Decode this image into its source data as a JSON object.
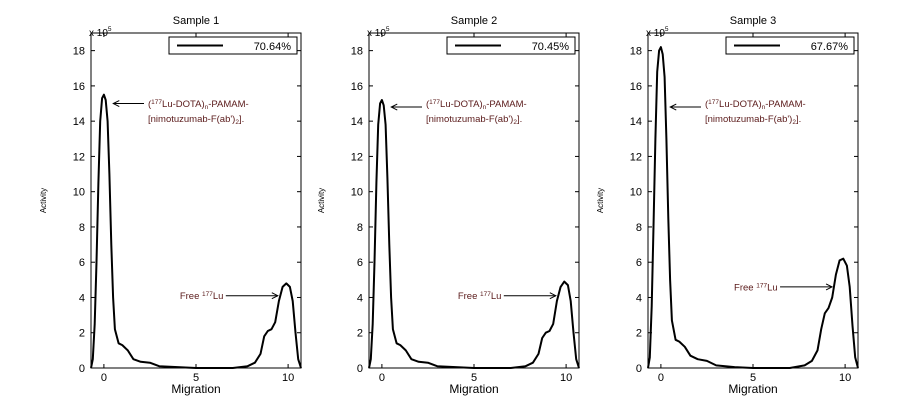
{
  "chart_data": [
    {
      "type": "line",
      "title": "Sample 1",
      "xlabel": "Migration",
      "ylabel": "Activity",
      "y_multiplier": "x 10",
      "y_multiplier_exp": "5",
      "xlim": [
        -0.7,
        10.7
      ],
      "ylim": [
        0,
        19
      ],
      "xticks": [
        0,
        5,
        10
      ],
      "yticks": [
        0,
        2,
        4,
        6,
        8,
        10,
        12,
        14,
        16,
        18
      ],
      "legend": {
        "text": "70.64%",
        "position": "top-right"
      },
      "annotations": [
        {
          "lines": [
            "(177Lu-DOTA)n-PAMAM-",
            "[nimotuzumab-F(ab')2]."
          ],
          "arrow_to": [
            0.4,
            15.0
          ]
        },
        {
          "lines": [
            "Free 177Lu"
          ],
          "arrow_to": [
            9.55,
            4.1
          ]
        }
      ],
      "series": [
        {
          "x": [
            -0.7,
            -0.6,
            -0.5,
            -0.4,
            -0.3,
            -0.2,
            -0.1,
            0,
            0.1,
            0.2,
            0.3,
            0.4,
            0.5,
            0.6,
            0.8,
            1.0,
            1.3,
            1.6,
            2.0,
            2.5,
            3.0,
            4.0,
            5.0,
            6.0,
            7.0,
            7.8,
            8.2,
            8.5,
            8.7,
            8.9,
            9.1,
            9.3,
            9.5,
            9.7,
            9.9,
            10.1,
            10.25,
            10.4,
            10.55,
            10.7
          ],
          "y": [
            0,
            0.5,
            2.5,
            6.0,
            10.5,
            14.0,
            15.3,
            15.5,
            15.2,
            14.0,
            11.0,
            7.0,
            4.0,
            2.2,
            1.4,
            1.3,
            1.0,
            0.5,
            0.35,
            0.3,
            0.1,
            0.05,
            0,
            0,
            0,
            0.1,
            0.3,
            0.8,
            1.8,
            2.1,
            2.2,
            2.6,
            3.8,
            4.6,
            4.8,
            4.6,
            3.8,
            2.0,
            0.5,
            0
          ]
        }
      ]
    },
    {
      "type": "line",
      "title": "Sample 2",
      "xlabel": "Migration",
      "ylabel": "Activity",
      "y_multiplier": "x 10",
      "y_multiplier_exp": "5",
      "xlim": [
        -0.7,
        10.7
      ],
      "ylim": [
        0,
        19
      ],
      "xticks": [
        0,
        5,
        10
      ],
      "yticks": [
        0,
        2,
        4,
        6,
        8,
        10,
        12,
        14,
        16,
        18
      ],
      "legend": {
        "text": "70.45%",
        "position": "top-right"
      },
      "annotations": [
        {
          "lines": [
            "(177Lu-DOTA)n-PAMAM-",
            "[nimotuzumab-F(ab')2]."
          ],
          "arrow_to": [
            0.4,
            14.8
          ]
        },
        {
          "lines": [
            "Free 177Lu"
          ],
          "arrow_to": [
            9.55,
            4.1
          ]
        }
      ],
      "series": [
        {
          "x": [
            -0.7,
            -0.6,
            -0.5,
            -0.4,
            -0.3,
            -0.2,
            -0.1,
            0,
            0.1,
            0.2,
            0.3,
            0.4,
            0.5,
            0.6,
            0.8,
            1.0,
            1.3,
            1.6,
            2.0,
            2.5,
            3.0,
            4.0,
            5.0,
            6.0,
            7.0,
            7.8,
            8.2,
            8.5,
            8.7,
            8.9,
            9.1,
            9.3,
            9.5,
            9.7,
            9.9,
            10.1,
            10.25,
            10.4,
            10.55,
            10.7
          ],
          "y": [
            0,
            0.5,
            2.5,
            6.0,
            10.5,
            13.8,
            15.0,
            15.2,
            14.9,
            13.8,
            10.8,
            7.0,
            4.0,
            2.2,
            1.4,
            1.3,
            1.0,
            0.5,
            0.35,
            0.3,
            0.1,
            0.05,
            0,
            0,
            0,
            0.1,
            0.3,
            0.8,
            1.7,
            2.0,
            2.1,
            2.5,
            3.8,
            4.6,
            4.9,
            4.7,
            3.8,
            2.0,
            0.5,
            0
          ]
        }
      ]
    },
    {
      "type": "line",
      "title": "Sample 3",
      "xlabel": "Migration",
      "ylabel": "Activity",
      "y_multiplier": "x 10",
      "y_multiplier_exp": "5",
      "xlim": [
        -0.7,
        10.7
      ],
      "ylim": [
        0,
        19
      ],
      "xticks": [
        0,
        5,
        10
      ],
      "yticks": [
        0,
        2,
        4,
        6,
        8,
        10,
        12,
        14,
        16,
        18
      ],
      "legend": {
        "text": "67.67%",
        "position": "top-right"
      },
      "annotations": [
        {
          "lines": [
            "(177Lu-DOTA)n-PAMAM-",
            "[nimotuzumab-F(ab')2]."
          ],
          "arrow_to": [
            0.4,
            14.8
          ]
        },
        {
          "lines": [
            "Free 177Lu"
          ],
          "arrow_to": [
            9.4,
            4.6
          ]
        }
      ],
      "series": [
        {
          "x": [
            -0.7,
            -0.6,
            -0.5,
            -0.4,
            -0.3,
            -0.2,
            -0.1,
            0,
            0.1,
            0.2,
            0.3,
            0.4,
            0.5,
            0.6,
            0.8,
            1.0,
            1.3,
            1.6,
            2.0,
            2.5,
            3.0,
            4.0,
            5.0,
            6.0,
            7.0,
            7.8,
            8.2,
            8.5,
            8.7,
            8.9,
            9.1,
            9.3,
            9.5,
            9.7,
            9.9,
            10.1,
            10.25,
            10.4,
            10.55,
            10.7
          ],
          "y": [
            0,
            0.6,
            3.5,
            8.0,
            13.0,
            16.8,
            18.0,
            18.2,
            17.8,
            16.5,
            13.0,
            8.5,
            5.0,
            2.7,
            1.6,
            1.5,
            1.2,
            0.7,
            0.5,
            0.4,
            0.15,
            0.05,
            0,
            0,
            0,
            0.15,
            0.4,
            1.0,
            2.2,
            3.1,
            3.4,
            4.0,
            5.3,
            6.1,
            6.2,
            5.8,
            4.6,
            2.4,
            0.6,
            0
          ]
        }
      ]
    }
  ]
}
